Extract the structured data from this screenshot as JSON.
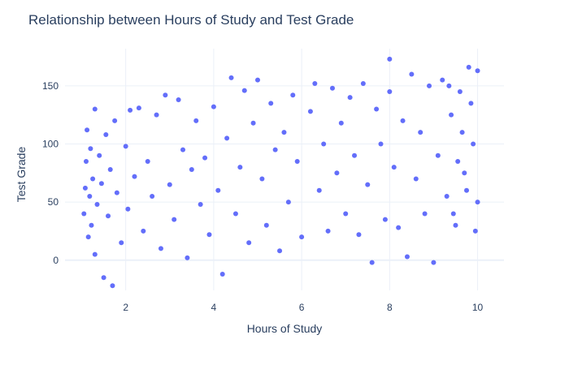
{
  "chart_data": {
    "type": "scatter",
    "title": "Relationship between Hours of Study and Test Grade",
    "xlabel": "Hours of Study",
    "ylabel": "Test Grade",
    "xlim": [
      0.62,
      10.6
    ],
    "ylim": [
      -26,
      182
    ],
    "x_ticks": [
      2,
      4,
      6,
      8,
      10
    ],
    "y_ticks": [
      0,
      50,
      100,
      150
    ],
    "grid": true,
    "legend": "none",
    "marker_color": "#636efa",
    "points": [
      [
        1.05,
        40
      ],
      [
        1.08,
        62
      ],
      [
        1.1,
        85
      ],
      [
        1.12,
        112
      ],
      [
        1.15,
        20
      ],
      [
        1.18,
        55
      ],
      [
        1.2,
        96
      ],
      [
        1.22,
        30
      ],
      [
        1.25,
        70
      ],
      [
        1.3,
        130
      ],
      [
        1.3,
        5
      ],
      [
        1.35,
        48
      ],
      [
        1.4,
        90
      ],
      [
        1.45,
        66
      ],
      [
        1.5,
        -15
      ],
      [
        1.55,
        108
      ],
      [
        1.6,
        38
      ],
      [
        1.65,
        78
      ],
      [
        1.7,
        -22
      ],
      [
        1.75,
        120
      ],
      [
        1.8,
        58
      ],
      [
        1.9,
        15
      ],
      [
        2.0,
        98
      ],
      [
        2.05,
        44
      ],
      [
        2.1,
        129
      ],
      [
        2.2,
        72
      ],
      [
        2.3,
        131
      ],
      [
        2.4,
        25
      ],
      [
        2.5,
        85
      ],
      [
        2.6,
        55
      ],
      [
        2.7,
        125
      ],
      [
        2.8,
        10
      ],
      [
        2.9,
        142
      ],
      [
        3.0,
        65
      ],
      [
        3.1,
        35
      ],
      [
        3.2,
        138
      ],
      [
        3.3,
        95
      ],
      [
        3.4,
        2
      ],
      [
        3.5,
        78
      ],
      [
        3.6,
        120
      ],
      [
        3.7,
        48
      ],
      [
        3.8,
        88
      ],
      [
        3.9,
        22
      ],
      [
        4.0,
        132
      ],
      [
        4.1,
        60
      ],
      [
        4.2,
        -12
      ],
      [
        4.3,
        105
      ],
      [
        4.4,
        157
      ],
      [
        4.5,
        40
      ],
      [
        4.6,
        80
      ],
      [
        4.7,
        146
      ],
      [
        4.8,
        15
      ],
      [
        4.9,
        118
      ],
      [
        5.0,
        155
      ],
      [
        5.1,
        70
      ],
      [
        5.2,
        30
      ],
      [
        5.3,
        135
      ],
      [
        5.4,
        95
      ],
      [
        5.5,
        8
      ],
      [
        5.6,
        110
      ],
      [
        5.7,
        50
      ],
      [
        5.8,
        142
      ],
      [
        5.9,
        85
      ],
      [
        6.0,
        20
      ],
      [
        6.2,
        128
      ],
      [
        6.3,
        152
      ],
      [
        6.4,
        60
      ],
      [
        6.5,
        100
      ],
      [
        6.6,
        25
      ],
      [
        6.7,
        148
      ],
      [
        6.8,
        75
      ],
      [
        6.9,
        118
      ],
      [
        7.0,
        40
      ],
      [
        7.1,
        140
      ],
      [
        7.2,
        90
      ],
      [
        7.3,
        22
      ],
      [
        7.4,
        152
      ],
      [
        7.5,
        65
      ],
      [
        7.6,
        -2
      ],
      [
        7.7,
        130
      ],
      [
        7.8,
        100
      ],
      [
        7.9,
        35
      ],
      [
        8.0,
        173
      ],
      [
        8.0,
        145
      ],
      [
        8.1,
        80
      ],
      [
        8.2,
        28
      ],
      [
        8.3,
        120
      ],
      [
        8.4,
        3
      ],
      [
        8.5,
        160
      ],
      [
        8.6,
        70
      ],
      [
        8.7,
        110
      ],
      [
        8.8,
        40
      ],
      [
        8.9,
        150
      ],
      [
        9.0,
        -2
      ],
      [
        9.1,
        90
      ],
      [
        9.2,
        155
      ],
      [
        9.3,
        55
      ],
      [
        9.4,
        125
      ],
      [
        9.5,
        30
      ],
      [
        9.6,
        145
      ],
      [
        9.7,
        75
      ],
      [
        9.8,
        166
      ],
      [
        9.9,
        100
      ],
      [
        10.0,
        163
      ],
      [
        10.0,
        50
      ],
      [
        9.95,
        25
      ],
      [
        9.85,
        135
      ],
      [
        9.75,
        60
      ],
      [
        9.65,
        110
      ],
      [
        9.55,
        85
      ],
      [
        9.45,
        40
      ],
      [
        9.35,
        150
      ]
    ]
  }
}
